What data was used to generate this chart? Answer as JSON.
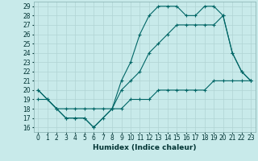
{
  "line1_x": [
    0,
    1,
    2,
    3,
    4,
    5,
    6,
    7,
    8,
    9,
    10,
    11,
    12,
    13,
    14,
    15,
    16,
    17,
    18,
    19,
    20,
    21,
    22,
    23
  ],
  "line1_y": [
    20,
    19,
    18,
    17,
    17,
    17,
    16,
    17,
    18,
    21,
    23,
    26,
    28,
    29,
    29,
    29,
    28,
    28,
    29,
    29,
    28,
    24,
    22,
    21
  ],
  "line2_x": [
    0,
    2,
    3,
    4,
    5,
    6,
    8,
    9,
    10,
    11,
    12,
    13,
    14,
    15,
    16,
    17,
    18,
    19,
    20,
    21,
    22,
    23
  ],
  "line2_y": [
    20,
    18,
    17,
    17,
    17,
    16,
    18,
    20,
    21,
    22,
    24,
    25,
    26,
    27,
    27,
    27,
    27,
    27,
    28,
    24,
    22,
    21
  ],
  "line3_x": [
    0,
    1,
    2,
    3,
    4,
    5,
    6,
    7,
    8,
    9,
    10,
    11,
    12,
    13,
    14,
    15,
    16,
    17,
    18,
    19,
    20,
    21,
    22,
    23
  ],
  "line3_y": [
    19,
    19,
    18,
    18,
    18,
    18,
    18,
    18,
    18,
    18,
    19,
    19,
    19,
    20,
    20,
    20,
    20,
    20,
    20,
    21,
    21,
    21,
    21,
    21
  ],
  "color": "#006666",
  "bg_color": "#c8eaea",
  "grid_color": "#b0d4d4",
  "xlabel": "Humidex (Indice chaleur)",
  "ylim": [
    15.5,
    29.5
  ],
  "xlim": [
    -0.5,
    23.5
  ],
  "marker": "+",
  "markersize": 3,
  "linewidth": 0.8,
  "xlabel_fontsize": 6.5,
  "tick_fontsize": 5.5
}
